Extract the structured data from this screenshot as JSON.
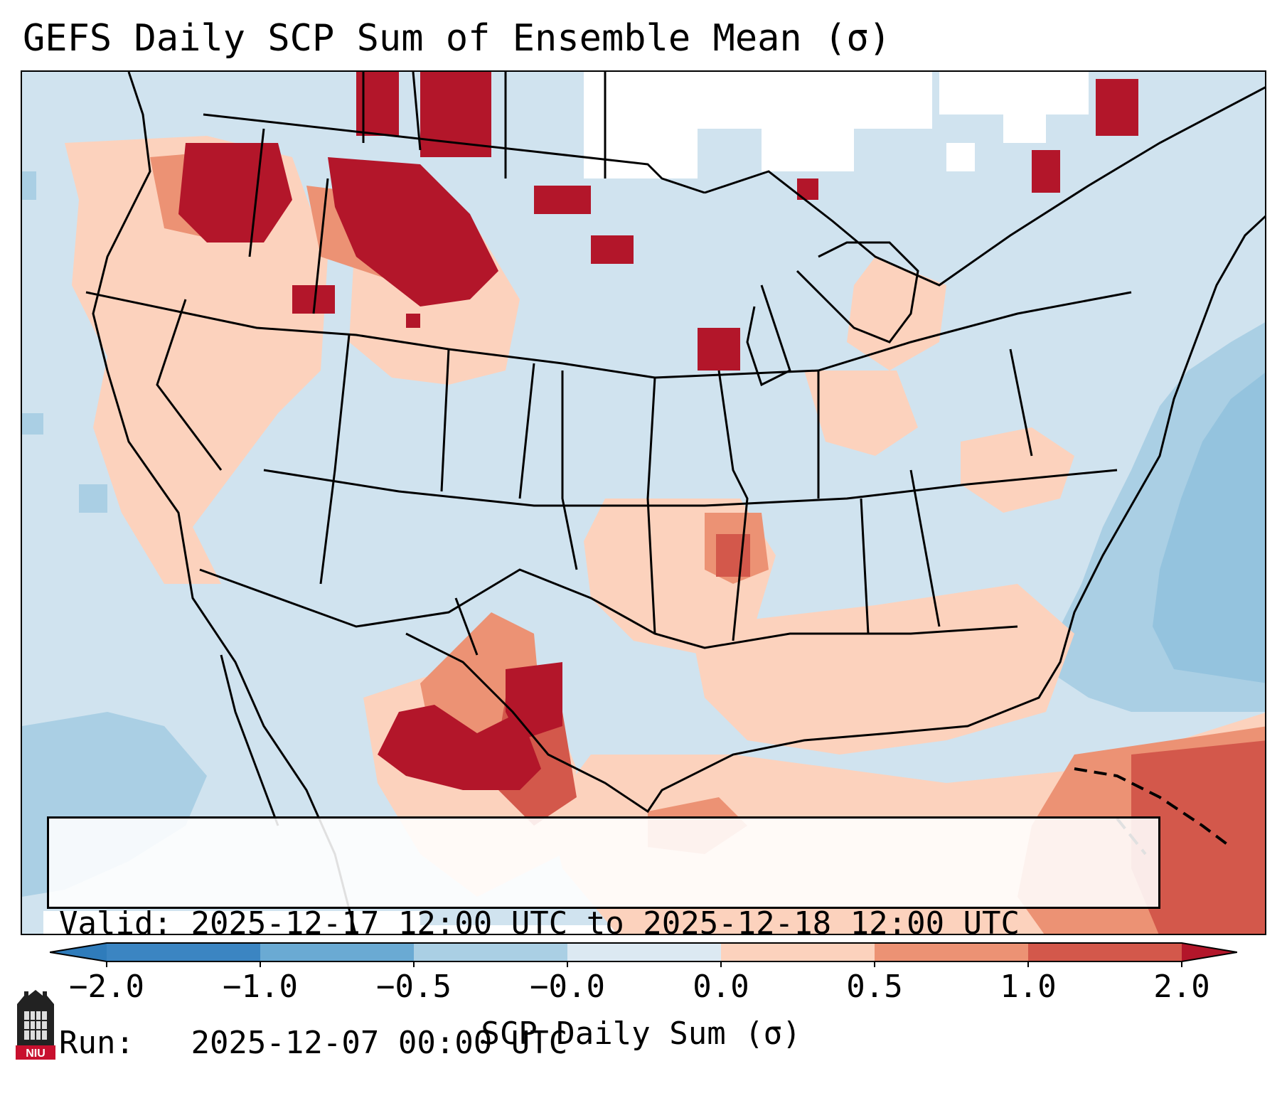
{
  "title": "GEFS Daily SCP Sum of Ensemble Mean (σ)",
  "info": {
    "valid_label": "Valid:",
    "valid_value": "2025-12-17 12:00 UTC to 2025-12-18 12:00 UTC",
    "run_label": "Run:",
    "run_value": "2025-12-07 00:00 UTC"
  },
  "colorbar": {
    "label": "SCP Daily Sum (σ)",
    "ticks": [
      "−2.0",
      "−1.0",
      "−0.5",
      "−0.0",
      "0.0",
      "0.5",
      "1.0",
      "2.0"
    ],
    "colors": [
      "#2f7cbb",
      "#6aaad3",
      "#aacfe4",
      "#dce9f2",
      "#ffffff",
      "#fcd2bd",
      "#ec9274",
      "#d3584b",
      "#b3162a"
    ]
  },
  "logo": {
    "text": "NIU"
  },
  "map_colors": {
    "background": "#d0e3ef",
    "white": "#ffffff",
    "light_red": "#fcd2bd",
    "mid_red": "#ec9274",
    "red": "#d3584b",
    "dark_red": "#b3162a",
    "light_blue": "#aacfe4",
    "mid_blue": "#6aaad3"
  }
}
